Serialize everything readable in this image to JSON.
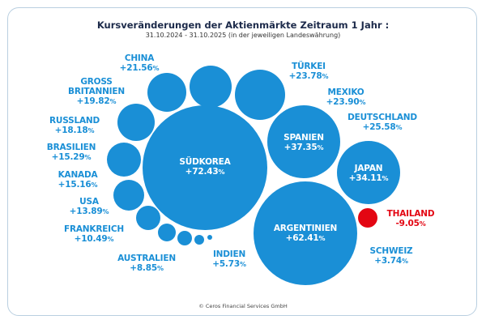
{
  "chart_data": {
    "type": "bubble",
    "title": "Kursveränderungen der Aktienmärkte Zeitraum 1 Jahr :",
    "subtitle": "31.10.2024 - 31.10.2025 (in der jeweiligen Landeswährung)",
    "unit": "%",
    "colors": {
      "positive": "#1a8fd6",
      "negative": "#e30613",
      "title": "#1c2a4a"
    },
    "series": [
      {
        "name": "SÜDKOREA",
        "value": 72.43,
        "display": "+72.43"
      },
      {
        "name": "ARGENTINIEN",
        "value": 62.41,
        "display": "+62.41"
      },
      {
        "name": "SPANIEN",
        "value": 37.35,
        "display": "+37.35"
      },
      {
        "name": "JAPAN",
        "value": 34.11,
        "display": "+34.11"
      },
      {
        "name": "DEUTSCHLAND",
        "value": 25.58,
        "display": "+25.58"
      },
      {
        "name": "MEXIKO",
        "value": 23.9,
        "display": "+23.90"
      },
      {
        "name": "TÜRKEI",
        "value": 23.78,
        "display": "+23.78"
      },
      {
        "name": "CHINA",
        "value": 21.56,
        "display": "+21.56"
      },
      {
        "name": "GROSS BRITANNIEN",
        "value": 19.82,
        "display": "+19.82"
      },
      {
        "name": "RUSSLAND",
        "value": 18.18,
        "display": "+18.18"
      },
      {
        "name": "BRASILIEN",
        "value": 15.29,
        "display": "+15.29"
      },
      {
        "name": "KANADA",
        "value": 15.16,
        "display": "+15.16"
      },
      {
        "name": "USA",
        "value": 13.89,
        "display": "+13.89"
      },
      {
        "name": "FRANKREICH",
        "value": 10.49,
        "display": "+10.49"
      },
      {
        "name": "AUSTRALIEN",
        "value": 8.85,
        "display": "+8.85"
      },
      {
        "name": "INDIEN",
        "value": 5.73,
        "display": "+5.73"
      },
      {
        "name": "SCHWEIZ",
        "value": 3.74,
        "display": "+3.74"
      },
      {
        "name": "THAILAND",
        "value": -9.05,
        "display": "-9.05"
      }
    ]
  },
  "footer": "© Ceros Financial Services GmbH"
}
